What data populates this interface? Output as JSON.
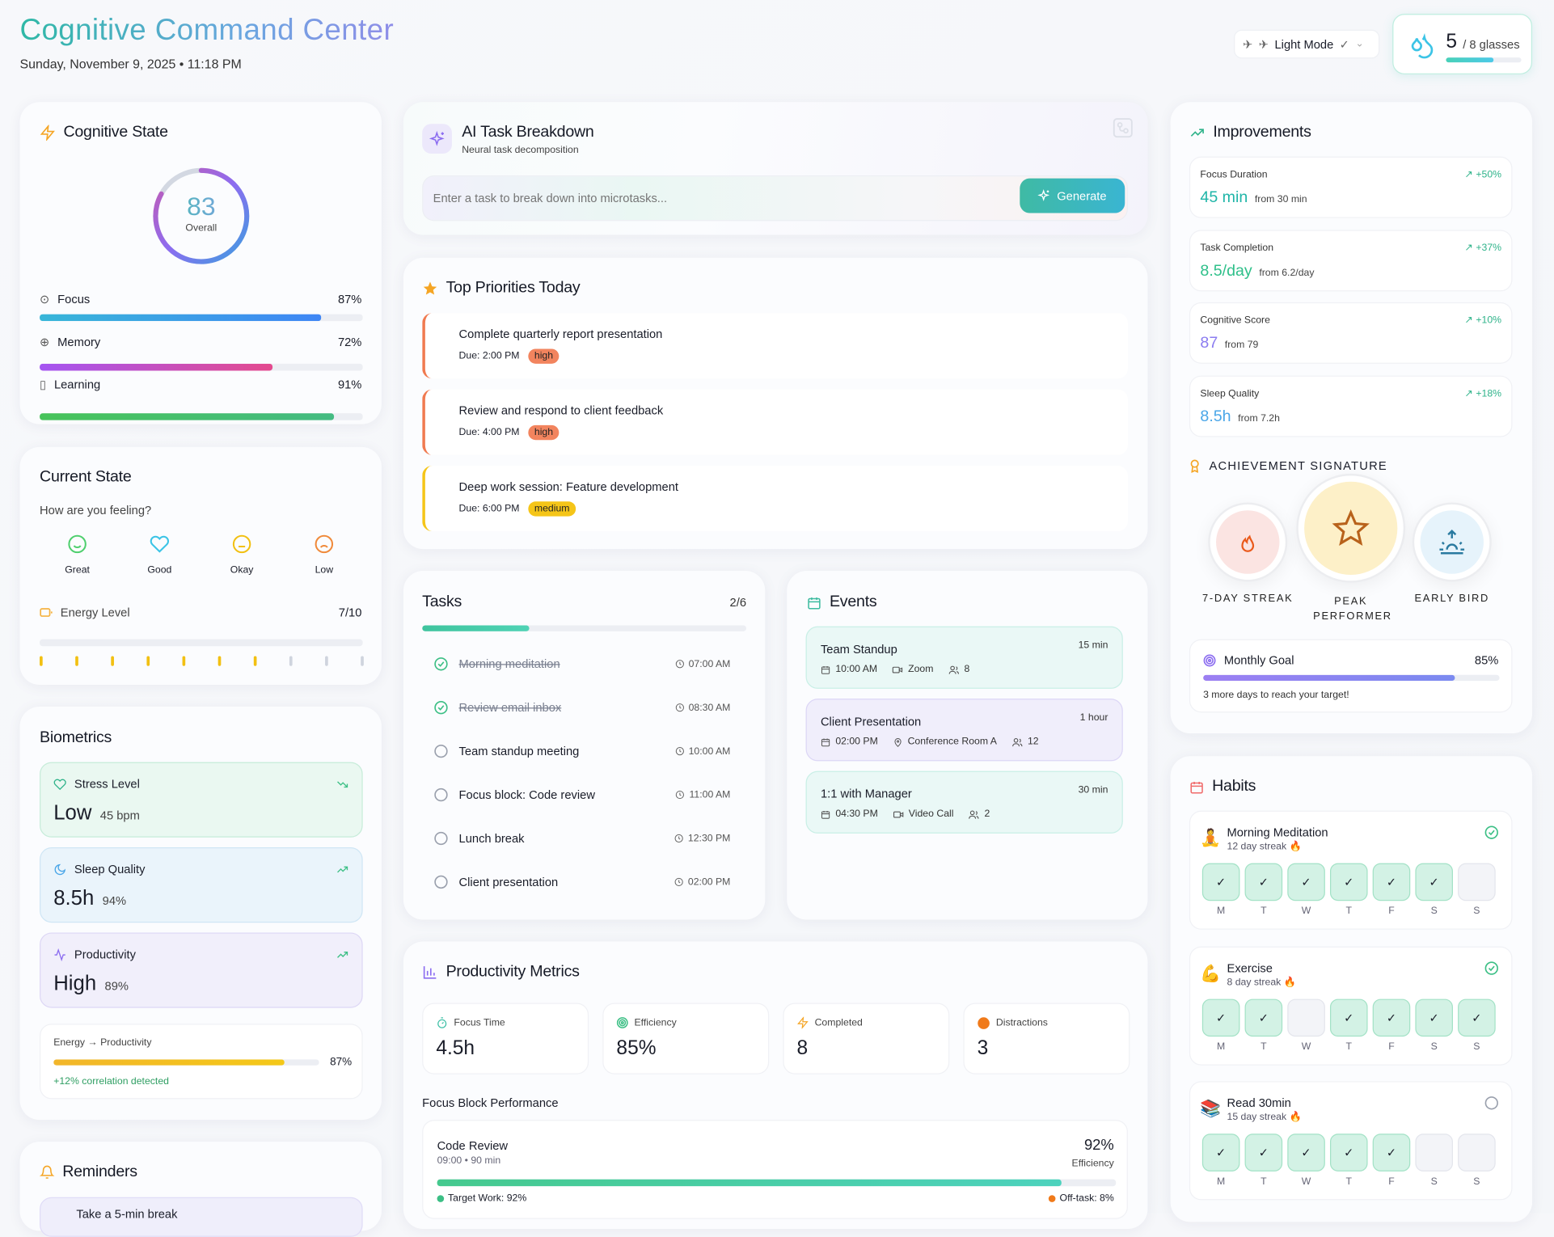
{
  "header": {
    "title": "Cognitive Command Center",
    "date": "Sunday, November 9, 2025 • 11:18 PM",
    "theme_label": "Light Mode",
    "water": {
      "count": "5",
      "goal": "/ 8 glasses",
      "fraction": 0.625
    }
  },
  "cognitive": {
    "title": "Cognitive State",
    "overall": 83,
    "overall_label": "Overall",
    "metrics": [
      {
        "label": "Focus",
        "value": "87%",
        "pct": 87
      },
      {
        "label": "Memory",
        "value": "72%",
        "pct": 72
      },
      {
        "label": "Learning",
        "value": "91%",
        "pct": 91
      }
    ]
  },
  "current_state": {
    "title": "Current State",
    "question": "How are you feeling?",
    "moods": [
      "Great",
      "Good",
      "Okay",
      "Low"
    ],
    "energy_label": "Energy Level",
    "energy_value": "7/10",
    "energy": 7,
    "energy_max": 10
  },
  "biometrics": {
    "title": "Biometrics",
    "items": [
      {
        "label": "Stress Level",
        "value": "Low",
        "sub": "45 bpm"
      },
      {
        "label": "Sleep Quality",
        "value": "8.5h",
        "sub": "94%"
      },
      {
        "label": "Productivity",
        "value": "High",
        "sub": "89%"
      }
    ],
    "correlation": {
      "label": "Energy → Productivity",
      "value": "87%",
      "pct": 87,
      "note": "+12% correlation detected"
    }
  },
  "reminders": {
    "title": "Reminders",
    "first_item": "Take a 5-min break"
  },
  "ai": {
    "title": "AI Task Breakdown",
    "subtitle": "Neural task decomposition",
    "placeholder": "Enter a task to break down into microtasks...",
    "button": "Generate"
  },
  "priorities": {
    "title": "Top Priorities Today",
    "items": [
      {
        "title": "Complete quarterly report presentation",
        "due": "Due: 2:00 PM",
        "level": "high"
      },
      {
        "title": "Review and respond to client feedback",
        "due": "Due: 4:00 PM",
        "level": "high"
      },
      {
        "title": "Deep work session: Feature development",
        "due": "Due: 6:00 PM",
        "level": "medium"
      }
    ]
  },
  "tasks": {
    "title": "Tasks",
    "count": "2/6",
    "progress": 0.33,
    "items": [
      {
        "label": "Morning meditation",
        "time": "07:00 AM",
        "done": true
      },
      {
        "label": "Review email inbox",
        "time": "08:30 AM",
        "done": true
      },
      {
        "label": "Team standup meeting",
        "time": "10:00 AM",
        "done": false
      },
      {
        "label": "Focus block: Code review",
        "time": "11:00 AM",
        "done": false
      },
      {
        "label": "Lunch break",
        "time": "12:30 PM",
        "done": false
      },
      {
        "label": "Client presentation",
        "time": "02:00 PM",
        "done": false
      }
    ]
  },
  "events": {
    "title": "Events",
    "items": [
      {
        "title": "Team Standup",
        "duration": "15 min",
        "time": "10:00 AM",
        "place": "Zoom",
        "people": "8",
        "kind": "video"
      },
      {
        "title": "Client Presentation",
        "duration": "1 hour",
        "time": "02:00 PM",
        "place": "Conference Room A",
        "people": "12",
        "kind": "location"
      },
      {
        "title": "1:1 with Manager",
        "duration": "30 min",
        "time": "04:30 PM",
        "place": "Video Call",
        "people": "2",
        "kind": "video"
      }
    ]
  },
  "productivity": {
    "title": "Productivity Metrics",
    "stats": [
      {
        "label": "Focus Time",
        "value": "4.5h"
      },
      {
        "label": "Efficiency",
        "value": "85%"
      },
      {
        "label": "Completed",
        "value": "8"
      },
      {
        "label": "Distractions",
        "value": "3"
      }
    ],
    "focus_title": "Focus Block Performance",
    "block": {
      "name": "Code Review",
      "meta": "09:00 • 90 min",
      "pct": "92%",
      "pct_label": "Efficiency",
      "progress": 92,
      "target": "Target Work: 92%",
      "off": "Off-task: 8%"
    }
  },
  "improvements": {
    "title": "Improvements",
    "items": [
      {
        "label": "Focus Duration",
        "change": "+50%",
        "value": "45 min",
        "from": "from 30 min",
        "color": "#1fb5a8"
      },
      {
        "label": "Task Completion",
        "change": "+37%",
        "value": "8.5/day",
        "from": "from 6.2/day",
        "color": "#2fc08a"
      },
      {
        "label": "Cognitive Score",
        "change": "+10%",
        "value": "87",
        "from": "from 79",
        "color": "#8b7cf0"
      },
      {
        "label": "Sleep Quality",
        "change": "+18%",
        "value": "8.5h",
        "from": "from 7.2h",
        "color": "#4aa6e8"
      }
    ],
    "achievement_title": "ACHIEVEMENT SIGNATURE",
    "badges": [
      "7-DAY STREAK",
      "PEAK PERFORMER",
      "EARLY BIRD"
    ],
    "goal": {
      "label": "Monthly Goal",
      "value": "85%",
      "pct": 85,
      "note": "3 more days to reach your target!"
    }
  },
  "habits": {
    "title": "Habits",
    "days": [
      "M",
      "T",
      "W",
      "T",
      "F",
      "S",
      "S"
    ],
    "items": [
      {
        "name": "Morning Meditation",
        "emoji": "🧘",
        "streak": "12 day streak 🔥",
        "done_today": true,
        "week": [
          1,
          1,
          1,
          1,
          1,
          1,
          0
        ]
      },
      {
        "name": "Exercise",
        "emoji": "💪",
        "streak": "8 day streak 🔥",
        "done_today": true,
        "week": [
          1,
          1,
          0,
          1,
          1,
          1,
          1
        ]
      },
      {
        "name": "Read 30min",
        "emoji": "📚",
        "streak": "15 day streak 🔥",
        "done_today": false,
        "week": [
          1,
          1,
          1,
          1,
          1,
          0,
          0
        ]
      }
    ]
  }
}
